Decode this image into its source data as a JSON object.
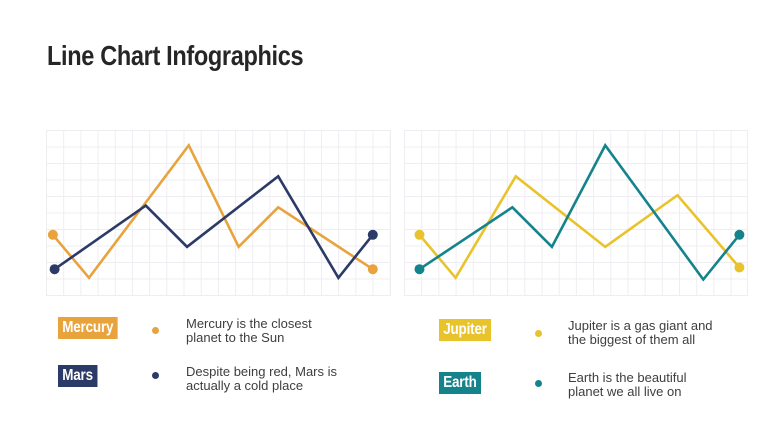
{
  "title": "Line Chart Infographics",
  "colors": {
    "background": "#ffffff",
    "title_text": "#262626",
    "body_text": "#3e3e3e",
    "badge_text": "#ffffff",
    "grid": "#efedf2",
    "mercury_orange": "#E8A33D",
    "mars_navy": "#2B3A67",
    "jupiter_yellow": "#E9C32B",
    "earth_teal": "#15838C"
  },
  "chart_data": [
    {
      "type": "line",
      "title": "",
      "xlabel": "",
      "ylabel": "",
      "grid": true,
      "axes_labeled": false,
      "units": "grid cells, estimated from gridlines (no axis labels shown); x from left, y up from bottom",
      "x_range": [
        0,
        20
      ],
      "y_range": [
        0,
        9.6
      ],
      "series": [
        {
          "name": "Mercury",
          "color": "#E8A33D",
          "endpoint_dots": true,
          "points": [
            [
              0.4,
              3.5
            ],
            [
              2.5,
              1.0
            ],
            [
              8.3,
              8.7
            ],
            [
              11.2,
              2.8
            ],
            [
              13.5,
              5.1
            ],
            [
              19.0,
              1.5
            ]
          ]
        },
        {
          "name": "Mars",
          "color": "#2B3A67",
          "endpoint_dots": true,
          "points": [
            [
              0.5,
              1.5
            ],
            [
              5.8,
              5.2
            ],
            [
              8.2,
              2.8
            ],
            [
              13.5,
              6.9
            ],
            [
              17.0,
              1.0
            ],
            [
              19.0,
              3.5
            ]
          ]
        }
      ]
    },
    {
      "type": "line",
      "title": "",
      "xlabel": "",
      "ylabel": "",
      "grid": true,
      "axes_labeled": false,
      "units": "grid cells, estimated from gridlines (no axis labels shown); x from left, y up from bottom",
      "x_range": [
        0,
        20
      ],
      "y_range": [
        0,
        9.6
      ],
      "series": [
        {
          "name": "Jupiter",
          "color": "#E9C32B",
          "endpoint_dots": true,
          "points": [
            [
              0.9,
              3.5
            ],
            [
              3.0,
              1.0
            ],
            [
              6.5,
              6.9
            ],
            [
              11.7,
              2.8
            ],
            [
              15.9,
              5.8
            ],
            [
              19.5,
              1.6
            ]
          ]
        },
        {
          "name": "Earth",
          "color": "#15838C",
          "endpoint_dots": true,
          "points": [
            [
              0.9,
              1.5
            ],
            [
              6.3,
              5.1
            ],
            [
              8.6,
              2.8
            ],
            [
              11.7,
              8.7
            ],
            [
              17.4,
              0.9
            ],
            [
              19.5,
              3.5
            ]
          ]
        }
      ]
    }
  ],
  "legends": {
    "left": [
      {
        "label": "Mercury",
        "color": "#E8A33D",
        "lines": [
          "Mercury is the closest",
          "planet to the Sun"
        ]
      },
      {
        "label": "Mars",
        "color": "#2B3A67",
        "lines": [
          "Despite being red, Mars is",
          "actually a cold place"
        ]
      }
    ],
    "right": [
      {
        "label": "Jupiter",
        "color": "#E9C32B",
        "lines": [
          "Jupiter is a gas giant and",
          "the biggest of them all"
        ]
      },
      {
        "label": "Earth",
        "color": "#15838C",
        "lines": [
          "Earth is the beautiful",
          "planet we all live on"
        ]
      }
    ]
  }
}
